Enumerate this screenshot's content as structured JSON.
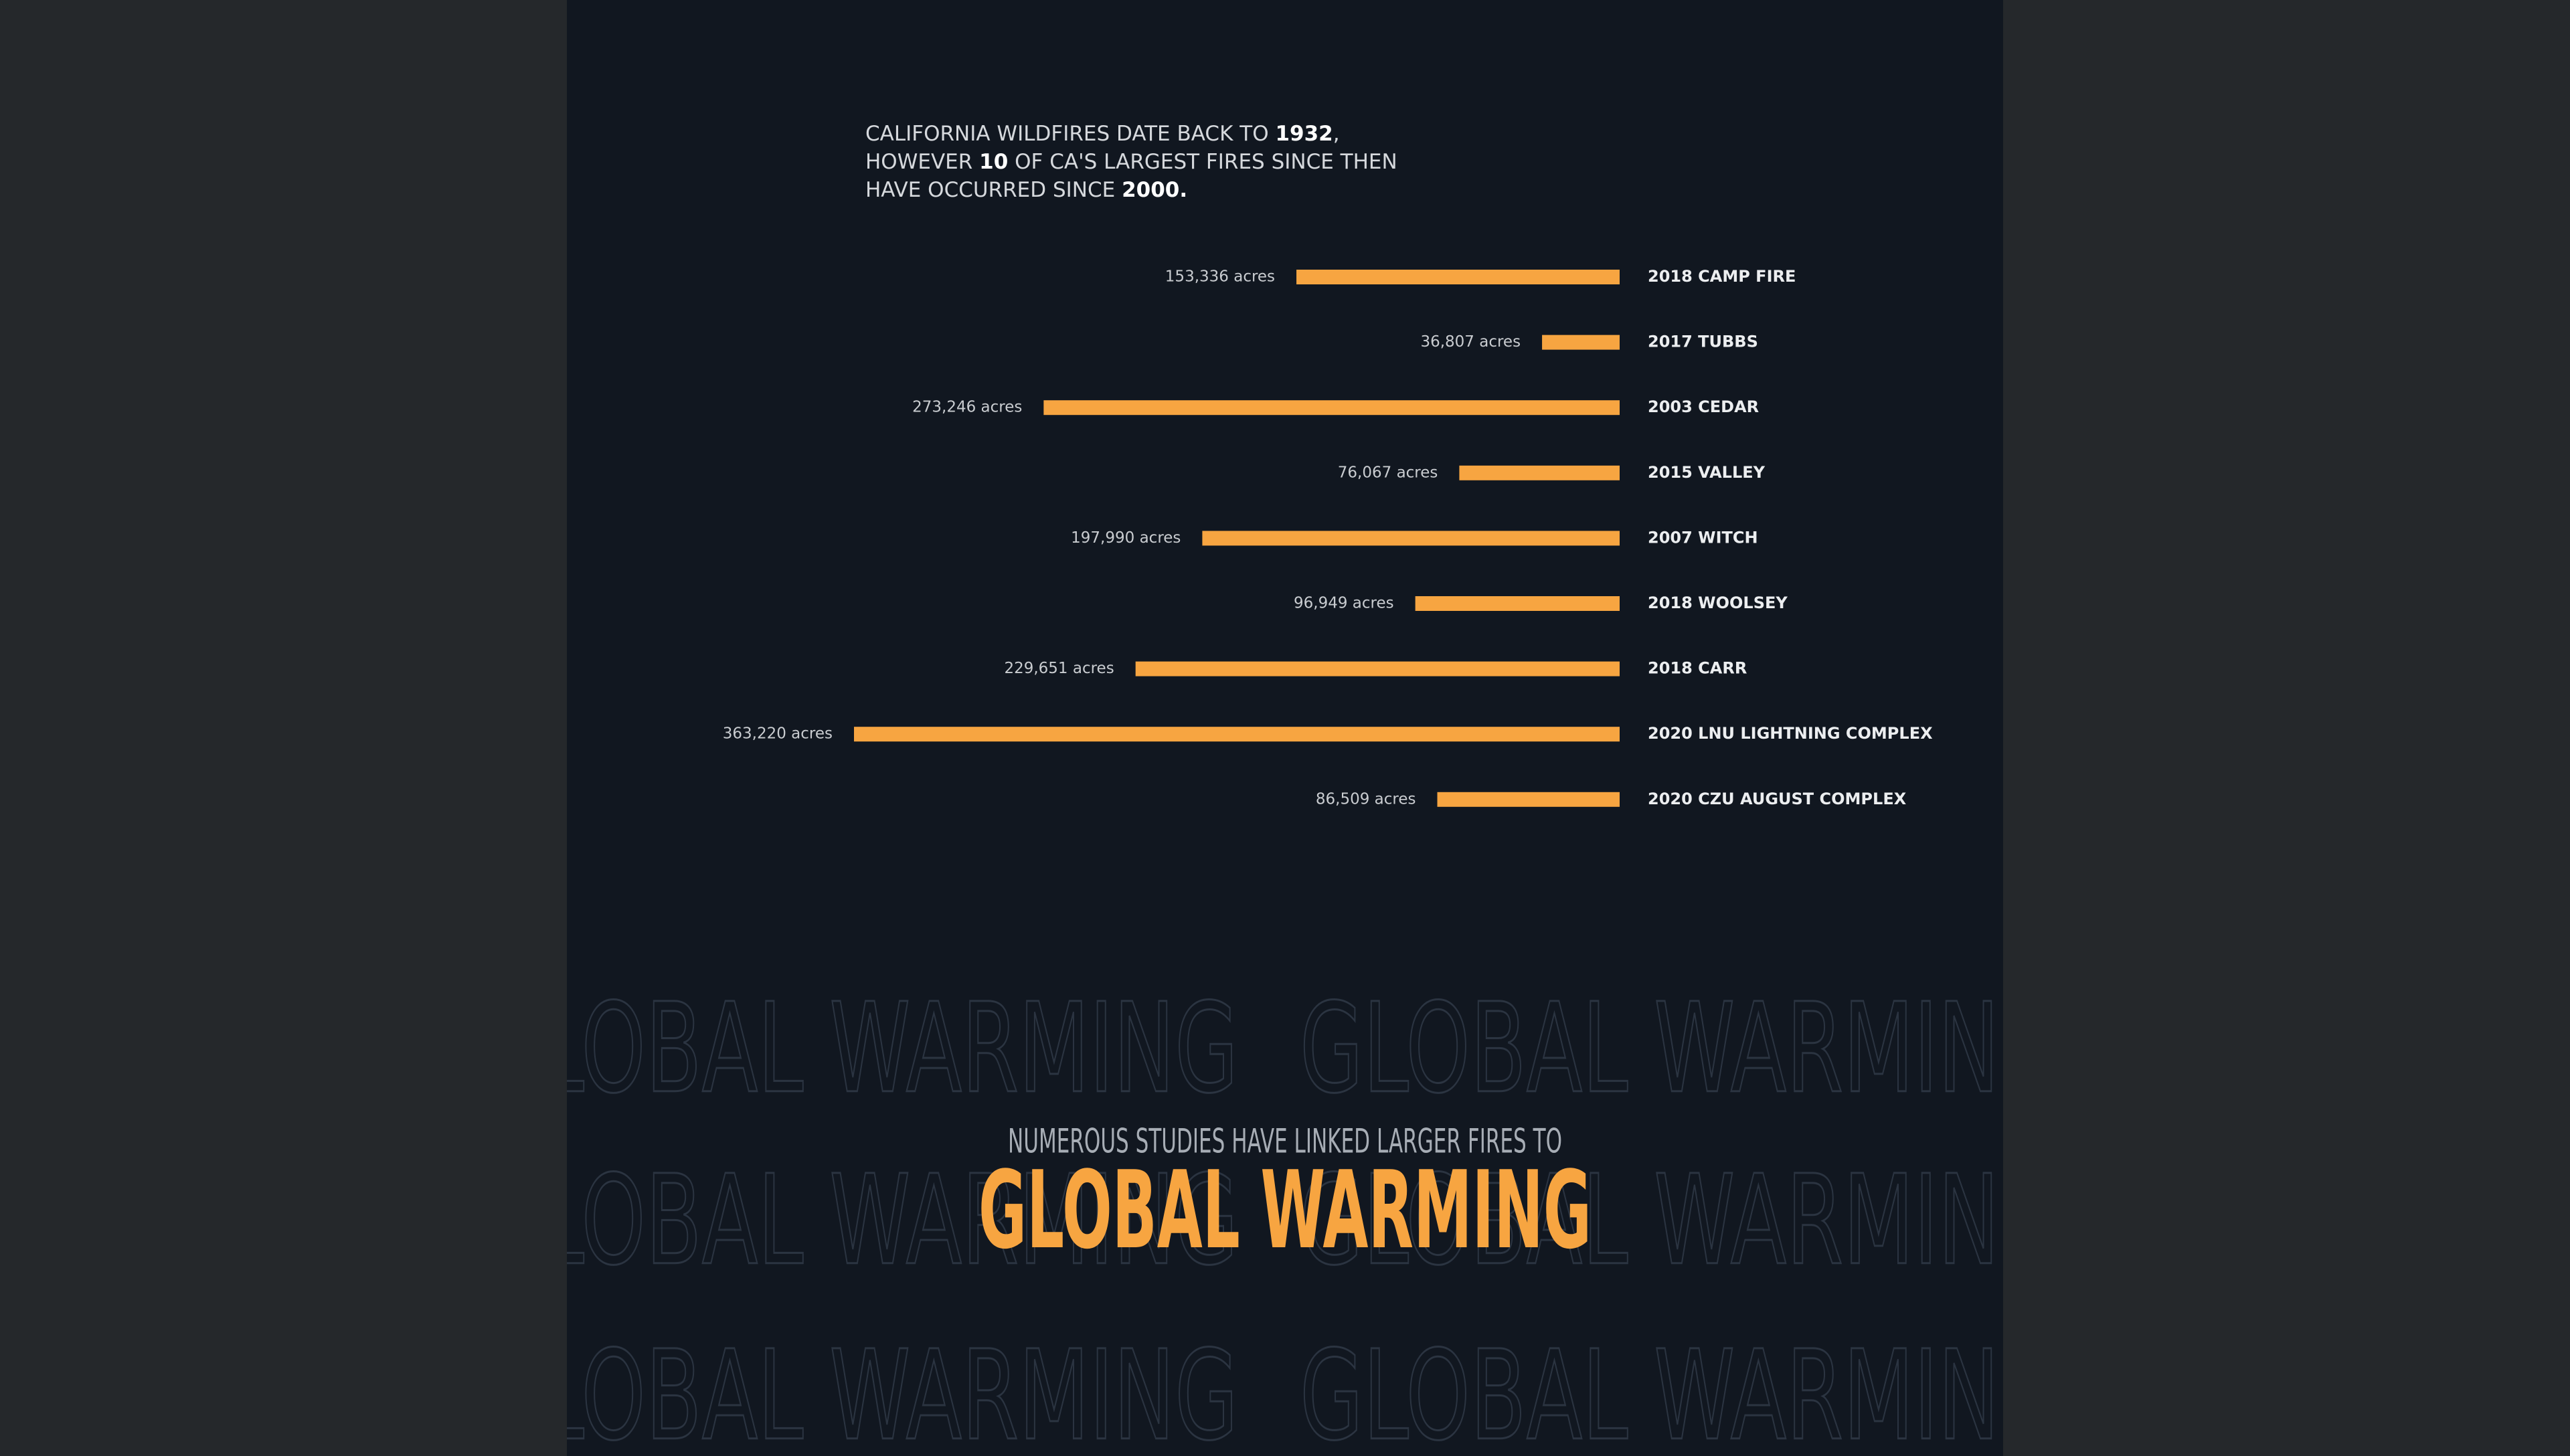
{
  "intro": [
    [
      {
        "text": "CALIFORNIA WILDFIRES DATE BACK TO ",
        "bold": false
      },
      {
        "text": "1932",
        "bold": true
      },
      {
        "text": ",",
        "bold": false
      }
    ],
    [
      {
        "text": "HOWEVER ",
        "bold": false
      },
      {
        "text": "10",
        "bold": true
      },
      {
        "text": " OF CA'S LARGEST FIRES SINCE THEN",
        "bold": false
      }
    ],
    [
      {
        "text": "HAVE OCCURRED SINCE ",
        "bold": false
      },
      {
        "text": "2000.",
        "bold": true
      }
    ]
  ],
  "chart_data": {
    "type": "hbar",
    "color": "#f7a541",
    "categories": [
      "2018 CAMP FIRE",
      "2017 TUBBS",
      "2003 CEDAR",
      "2015 VALLEY",
      "2007 WITCH",
      "2018 WOOLSEY",
      "2018 CARR",
      "2020 LNU LIGHTNING COMPLEX",
      "2020 CZU AUGUST COMPLEX"
    ],
    "values": [
      153336,
      36807,
      273246,
      76067,
      197990,
      96949,
      229651,
      363220,
      86509
    ],
    "value_labels": [
      "153,336 acres",
      "36,807 acres",
      "273,246 acres",
      "76,067 acres",
      "197,990 acres",
      "96,949 acres",
      "229,651 acres",
      "363,220 acres",
      "86,509 acres"
    ]
  },
  "background_text": "GLOBAL WARMING",
  "footer": {
    "subtitle": "NUMEROUS STUDIES HAVE LINKED LARGER FIRES TO",
    "headline": "GLOBAL WARMING"
  }
}
